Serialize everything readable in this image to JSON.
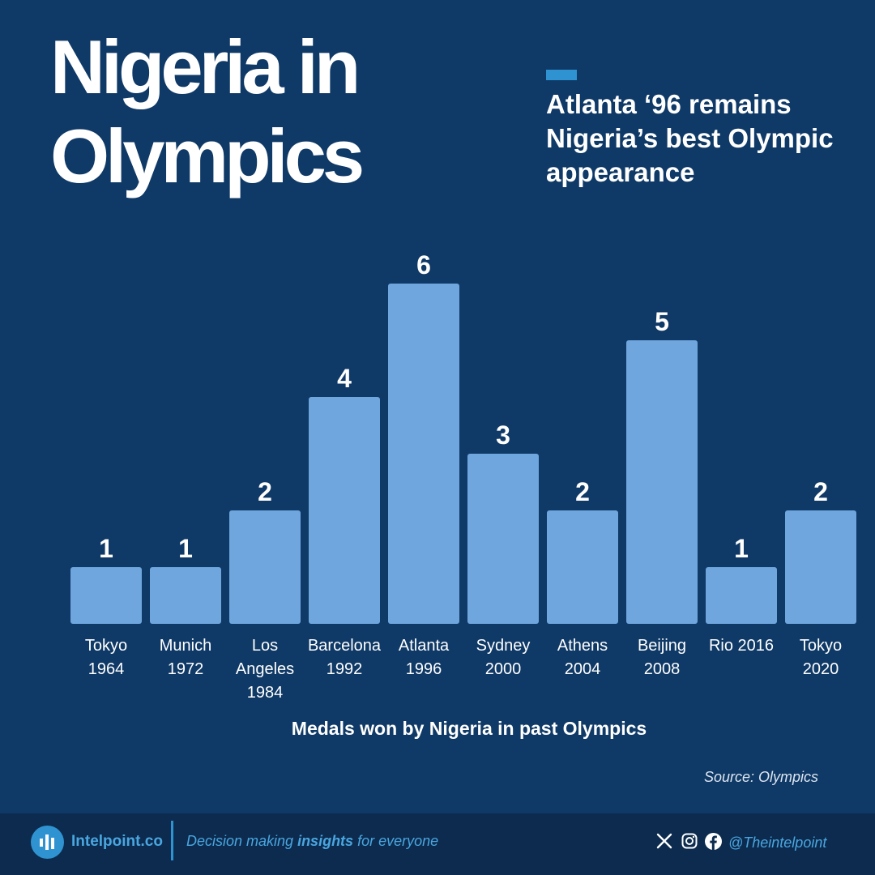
{
  "title": {
    "line1": "Nigeria in",
    "line2": "Olympics"
  },
  "headline": "Atlanta ‘96 remains Nigeria’s best Olympic appearance",
  "colors": {
    "background": "#0f3966",
    "bar": "#6ea6dd",
    "accent": "#2f93d2",
    "footer": "#0c2b4e"
  },
  "chart_data": {
    "type": "bar",
    "categories": [
      [
        "Tokyo",
        "1964"
      ],
      [
        "Munich",
        "1972"
      ],
      [
        "Los",
        "Angeles",
        "1984"
      ],
      [
        "Barcelona",
        "1992"
      ],
      [
        "Atlanta",
        "1996"
      ],
      [
        "Sydney",
        "2000"
      ],
      [
        "Athens",
        "2004"
      ],
      [
        "Beijing",
        "2008"
      ],
      [
        "Rio 2016"
      ],
      [
        "Tokyo",
        "2020"
      ]
    ],
    "values": [
      1,
      1,
      2,
      4,
      6,
      3,
      2,
      5,
      1,
      2
    ],
    "ylim": [
      0,
      6
    ],
    "data_labels": true,
    "grid": false,
    "caption": "Medals won by Nigeria in past Olympics"
  },
  "source": "Source: Olympics",
  "footer": {
    "brand": "Intelpoint.co",
    "tagline_before": "Decision making ",
    "tagline_bold": "insights",
    "tagline_after": " for everyone",
    "icons": [
      "logo-bars-icon",
      "x-icon",
      "instagram-icon",
      "facebook-icon"
    ],
    "handle": "@Theintelpoint"
  }
}
